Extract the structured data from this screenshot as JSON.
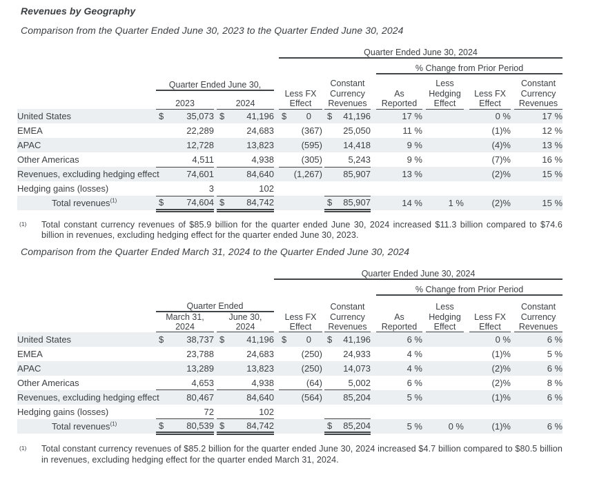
{
  "page": {
    "title": "Revenues by Geography",
    "section1_heading": "Comparison from the Quarter Ended June 30, 2023 to the Quarter Ended June 30, 2024",
    "section2_heading": "Comparison from the Quarter Ended March 31, 2024 to the Quarter Ended June 30, 2024"
  },
  "colors": {
    "text": "#3c4043",
    "border": "#3f4346",
    "row_stripe": "#eceff1"
  },
  "table1": {
    "top_group": "Quarter Ended June 30, 2024",
    "pct_group": "% Change from Prior Period",
    "period_group": "Quarter Ended June 30,",
    "col_headers": [
      "2023",
      "2024",
      "Less FX\nEffect",
      "Constant\nCurrency\nRevenues",
      "As\nReported",
      "Less\nHedging\nEffect",
      "Less FX\nEffect",
      "Constant\nCurrency\nRevenues"
    ],
    "rows": [
      {
        "label": "United States",
        "stripe": true,
        "cur": [
          0,
          1,
          2,
          3
        ],
        "cells": [
          "35,073",
          "41,196",
          "0",
          "41,196",
          "17 %",
          "",
          "0 %",
          "17 %"
        ]
      },
      {
        "label": "EMEA",
        "cells": [
          "22,289",
          "24,683",
          "(367)",
          "25,050",
          "11 %",
          "",
          "(1)%",
          "12 %"
        ]
      },
      {
        "label": "APAC",
        "stripe": true,
        "cells": [
          "12,728",
          "13,823",
          "(595)",
          "14,418",
          "9 %",
          "",
          "(4)%",
          "13 %"
        ]
      },
      {
        "label": "Other Americas",
        "ul": [
          0,
          1,
          2,
          3
        ],
        "cells": [
          "4,511",
          "4,938",
          "(305)",
          "5,243",
          "9 %",
          "",
          "(7)%",
          "16 %"
        ]
      },
      {
        "label": "Revenues, excluding hedging effect",
        "stripe": true,
        "cells": [
          "74,601",
          "84,640",
          "(1,267)",
          "85,907",
          "13 %",
          "",
          "(2)%",
          "15 %"
        ]
      },
      {
        "label": "Hedging gains (losses)",
        "ul": [
          0,
          1,
          3
        ],
        "cells": [
          "3",
          "102",
          "",
          "",
          "",
          "",
          "",
          ""
        ]
      },
      {
        "label": "Total revenues",
        "sup": "(1)",
        "indent": true,
        "stripe": true,
        "cur": [
          0,
          1,
          3
        ],
        "dbl": [
          0,
          1,
          3
        ],
        "cells": [
          "74,604",
          "84,742",
          "",
          "85,907",
          "14 %",
          "1 %",
          "(2)%",
          "15 %"
        ]
      }
    ]
  },
  "table2": {
    "top_group": "Quarter Ended June 30, 2024",
    "pct_group": "% Change from Prior Period",
    "period_group": "Quarter Ended",
    "col_headers": [
      "March 31,\n2024",
      "June 30,\n2024",
      "Less FX\nEffect",
      "Constant\nCurrency\nRevenues",
      "As\nReported",
      "Less\nHedging\nEffect",
      "Less FX\nEffect",
      "Constant\nCurrency\nRevenues"
    ],
    "rows": [
      {
        "label": "United States",
        "stripe": true,
        "cur": [
          0,
          1,
          2,
          3
        ],
        "cells": [
          "38,737",
          "41,196",
          "0",
          "41,196",
          "6 %",
          "",
          "0 %",
          "6 %"
        ]
      },
      {
        "label": "EMEA",
        "cells": [
          "23,788",
          "24,683",
          "(250)",
          "24,933",
          "4 %",
          "",
          "(1)%",
          "5 %"
        ]
      },
      {
        "label": "APAC",
        "stripe": true,
        "cells": [
          "13,289",
          "13,823",
          "(250)",
          "14,073",
          "4 %",
          "",
          "(2)%",
          "6 %"
        ]
      },
      {
        "label": "Other Americas",
        "ul": [
          0,
          1,
          2,
          3
        ],
        "cells": [
          "4,653",
          "4,938",
          "(64)",
          "5,002",
          "6 %",
          "",
          "(2)%",
          "8 %"
        ]
      },
      {
        "label": "Revenues, excluding hedging effect",
        "stripe": true,
        "cells": [
          "80,467",
          "84,640",
          "(564)",
          "85,204",
          "5 %",
          "",
          "(1)%",
          "6 %"
        ]
      },
      {
        "label": "Hedging gains (losses)",
        "ul": [
          0,
          1,
          3
        ],
        "cells": [
          "72",
          "102",
          "",
          "",
          "",
          "",
          "",
          ""
        ]
      },
      {
        "label": "Total revenues",
        "sup": "(1)",
        "indent": true,
        "stripe": true,
        "cur": [
          0,
          1,
          3
        ],
        "dbl": [
          0,
          1,
          3
        ],
        "cells": [
          "80,539",
          "84,742",
          "",
          "85,204",
          "5 %",
          "0 %",
          "(1)%",
          "6 %"
        ]
      }
    ]
  },
  "footnotes": [
    {
      "marker": "(1)",
      "text": "Total constant currency revenues of $85.9 billion for the quarter ended June 30, 2024 increased $11.3 billion compared to $74.6 billion in revenues, excluding hedging effect for the quarter ended June 30, 2023."
    },
    {
      "marker": "(1)",
      "text": "Total constant currency revenues of $85.2 billion for the quarter ended June 30, 2024 increased $4.7 billion compared to $80.5 billion in revenues, excluding hedging effect for the quarter ended March 31, 2024."
    }
  ]
}
